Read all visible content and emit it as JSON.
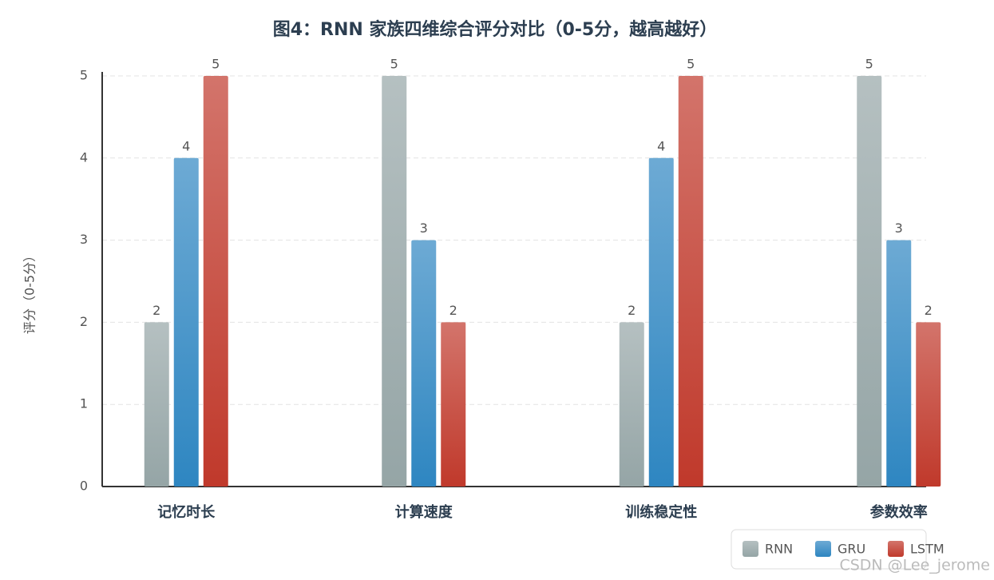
{
  "chart_data": {
    "type": "bar",
    "title": "图4：RNN 家族四维综合评分对比（0-5分，越高越好）",
    "y_label": "评分（0-5分）",
    "categories": [
      "记忆时长",
      "计算速度",
      "训练稳定性",
      "参数效率"
    ],
    "series": [
      {
        "name": "RNN",
        "color": "#95a5a6",
        "values": [
          2,
          5,
          2,
          5
        ]
      },
      {
        "name": "GRU",
        "color": "#2e86c1",
        "values": [
          4,
          3,
          4,
          3
        ]
      },
      {
        "name": "LSTM",
        "color": "#c0392b",
        "values": [
          5,
          2,
          5,
          2
        ]
      }
    ],
    "ylim": [
      0,
      5
    ],
    "yticks": [
      0,
      1,
      2,
      3,
      4,
      5
    ],
    "grid": true,
    "legend": "lower right",
    "watermark": "CSDN @Lee_jerome"
  }
}
